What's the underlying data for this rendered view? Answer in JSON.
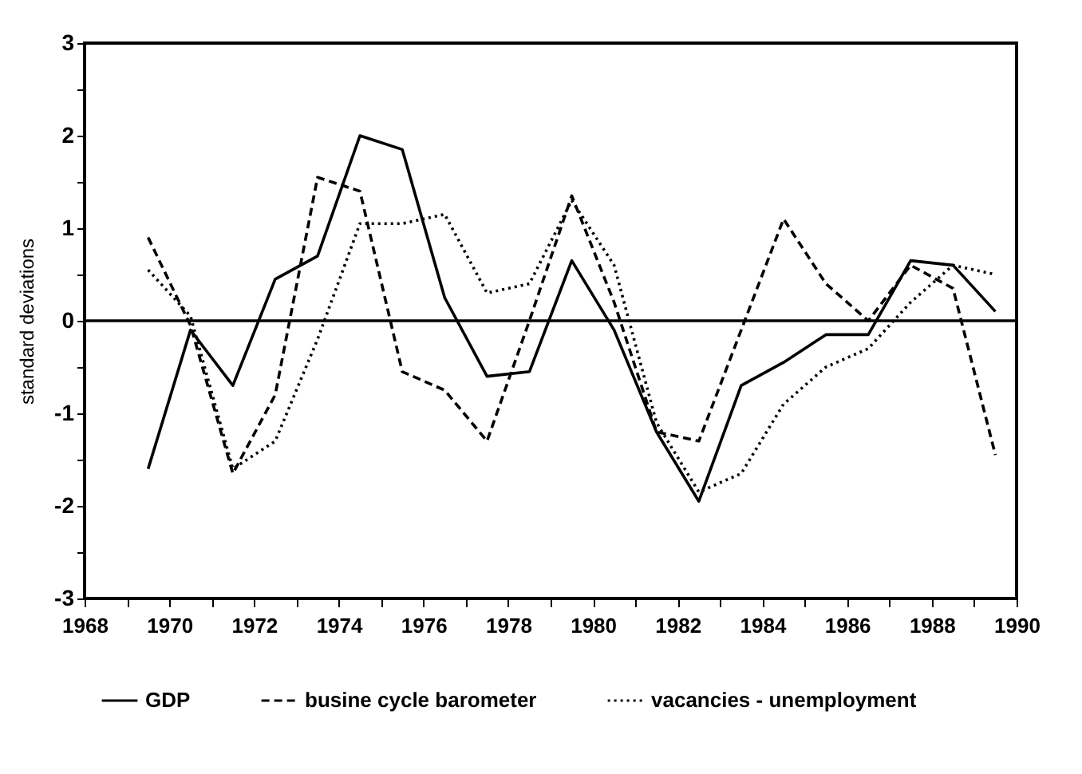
{
  "chart_data": {
    "type": "line",
    "ylabel": "standard deviations",
    "x": [
      1969.5,
      1970.5,
      1971.5,
      1972.5,
      1973.5,
      1974.5,
      1975.5,
      1976.5,
      1977.5,
      1978.5,
      1979.5,
      1980.5,
      1981.5,
      1982.5,
      1983.5,
      1984.5,
      1985.5,
      1986.5,
      1987.5,
      1988.5,
      1989.5
    ],
    "series": [
      {
        "name": "GDP",
        "color": "#000000",
        "line_style": "solid",
        "values": [
          -1.6,
          -0.1,
          -0.7,
          0.45,
          0.7,
          2.0,
          1.85,
          0.25,
          -0.6,
          -0.55,
          0.65,
          -0.1,
          -1.2,
          -1.95,
          -0.7,
          -0.45,
          -0.15,
          -0.15,
          0.65,
          0.6,
          0.1
        ]
      },
      {
        "name": "busine cycle barometer",
        "color": "#000000",
        "line_style": "dashed",
        "values": [
          0.9,
          -0.05,
          -1.65,
          -0.8,
          1.55,
          1.4,
          -0.55,
          -0.75,
          -1.3,
          0.0,
          1.35,
          0.2,
          -1.2,
          -1.3,
          -0.1,
          1.1,
          0.4,
          0.0,
          0.6,
          0.35,
          -1.45
        ]
      },
      {
        "name": "vacancies - unemployment",
        "color": "#000000",
        "line_style": "dotted",
        "values": [
          0.55,
          0.05,
          -1.6,
          -1.3,
          -0.2,
          1.05,
          1.05,
          1.15,
          0.3,
          0.4,
          1.3,
          0.6,
          -1.1,
          -1.85,
          -1.65,
          -0.9,
          -0.5,
          -0.3,
          0.2,
          0.6,
          0.5
        ]
      }
    ],
    "xlim": [
      1968,
      1990
    ],
    "xticks": [
      1968,
      {
        "value": 1969,
        "label": null
      },
      1970,
      {
        "value": 1971,
        "label": null
      },
      1972,
      {
        "value": 1973,
        "label": null
      },
      1974,
      {
        "value": 1975,
        "label": null
      },
      1976,
      {
        "value": 1977,
        "label": null
      },
      1978,
      {
        "value": 1979,
        "label": null
      },
      1980,
      {
        "value": 1981,
        "label": null
      },
      1982,
      {
        "value": 1983,
        "label": null
      },
      1984,
      {
        "value": 1985,
        "label": null
      },
      1986,
      {
        "value": 1987,
        "label": null
      },
      1988,
      {
        "value": 1989,
        "label": null
      },
      1990
    ],
    "ylim": [
      -3,
      3
    ],
    "yticks": [
      -3,
      {
        "value": -2.5,
        "label": null
      },
      -2,
      {
        "value": -1.5,
        "label": null
      },
      -1,
      {
        "value": -0.5,
        "label": null
      },
      0,
      {
        "value": 0.5,
        "label": null
      },
      1,
      {
        "value": 1.5,
        "label": null
      },
      2,
      {
        "value": 2.5,
        "label": null
      },
      3
    ],
    "ref_lines": [
      {
        "axis": "y",
        "value": 0,
        "color": "#000000"
      }
    ],
    "grid": false,
    "legend": "bottom",
    "marker": "none"
  }
}
